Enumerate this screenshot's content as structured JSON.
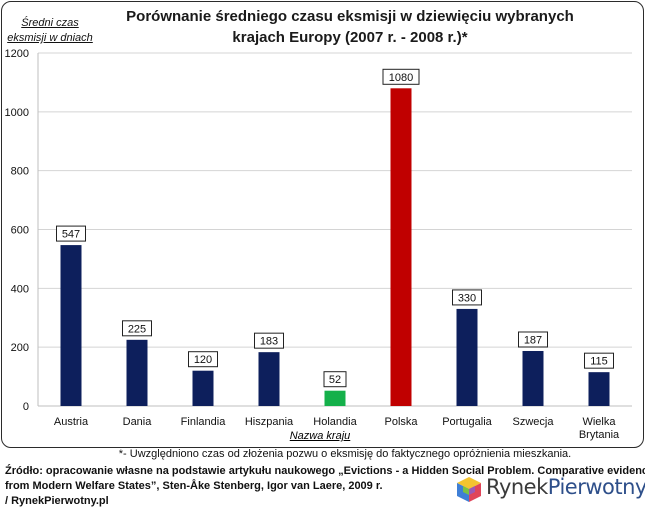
{
  "chart_data": {
    "type": "bar",
    "title": "Porównanie średniego czasu eksmisji w dziewięciu wybranych krajach Europy (2007 r. - 2008 r.)*",
    "title_lines": [
      "Porównanie średniego czasu eksmisji w dziewięciu wybranych",
      "krajach Europy (2007 r. - 2008 r.)*"
    ],
    "ylabel_lines": [
      "Średni czas",
      "eksmisji w dniach"
    ],
    "xlabel": "Nazwa kraju",
    "ylim": [
      0,
      1200
    ],
    "yticks": [
      0,
      200,
      400,
      600,
      800,
      1000,
      1200
    ],
    "grid": true,
    "categories": [
      "Austria",
      "Dania",
      "Finlandia",
      "Hiszpania",
      "Holandia",
      "Polska",
      "Portugalia",
      "Szwecja",
      "Wielka Brytania"
    ],
    "category_lines": [
      [
        "Austria"
      ],
      [
        "Dania"
      ],
      [
        "Finlandia"
      ],
      [
        "Hiszpania"
      ],
      [
        "Holandia"
      ],
      [
        "Polska"
      ],
      [
        "Portugalia"
      ],
      [
        "Szwecja"
      ],
      [
        "Wielka",
        "Brytania"
      ]
    ],
    "values": [
      547,
      225,
      120,
      183,
      52,
      1080,
      330,
      187,
      115
    ],
    "colors": [
      "#0d1f5c",
      "#0d1f5c",
      "#0d1f5c",
      "#0d1f5c",
      "#14b04a",
      "#c00000",
      "#0d1f5c",
      "#0d1f5c",
      "#0d1f5c"
    ]
  },
  "footnote": "*- Uwzględniono czas od złożenia pozwu o eksmisję do faktycznego opróżnienia mieszkania.",
  "source_lines": [
    "Źródło: opracowanie własne na podstawie artykułu naukowego „Evictions - a Hidden Social Problem. Comparative evidence",
    "from Modern Welfare States”, Sten-Åke Stenberg, Igor van Laere, 2009 r.",
    "/ RynekPierwotny.pl"
  ],
  "logo": {
    "part1": "Rynek",
    "part2": "Pierwotny",
    "icon": "cube-logo-icon"
  }
}
